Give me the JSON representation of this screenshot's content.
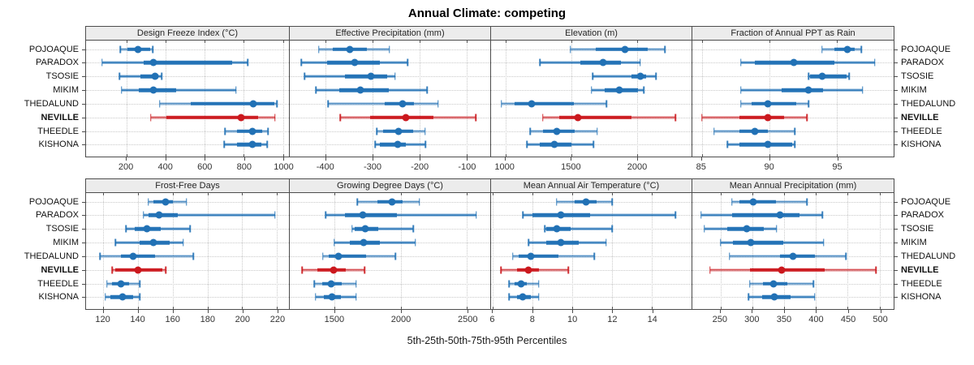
{
  "title": "Annual Climate: competing",
  "caption": "5th-25th-50th-75th-95th Percentiles",
  "sites": [
    "POJOAQUE",
    "PARADOX",
    "TSOSIE",
    "MIKIM",
    "THEDALUND",
    "NEVILLE",
    "THEEDLE",
    "KISHONA"
  ],
  "highlight_site": "NEVILLE",
  "colors": {
    "series": "#2171b5",
    "highlight": "#cb181d",
    "grid": "#c9c9c9",
    "header_bg": "#ececec",
    "border": "#4d4d4d"
  },
  "chart_data": {
    "type": "percentile-dotplot",
    "layout": "2 rows x 4 columns of panels, shared site rows",
    "percentile_labels": [
      "5th",
      "25th",
      "50th",
      "75th",
      "95th"
    ],
    "rows": [
      "POJOAQUE",
      "PARADOX",
      "TSOSIE",
      "MIKIM",
      "THEDALUND",
      "NEVILLE",
      "THEEDLE",
      "KISHONA"
    ],
    "panels": [
      {
        "title": "Design Freeze Index (°C)",
        "xlim": [
          -6,
          1031
        ],
        "ticks": [
          200,
          400,
          600,
          800,
          1000
        ],
        "values": [
          [
            170,
            205,
            260,
            320,
            335
          ],
          [
            75,
            290,
            340,
            740,
            820
          ],
          [
            165,
            270,
            345,
            365,
            380
          ],
          [
            175,
            265,
            340,
            455,
            760
          ],
          [
            370,
            530,
            850,
            955,
            970
          ],
          [
            325,
            405,
            785,
            875,
            960
          ],
          [
            705,
            765,
            845,
            895,
            925
          ],
          [
            700,
            765,
            843,
            890,
            920
          ]
        ]
      },
      {
        "title": "Effective Precipitation (mm)",
        "xlim": [
          -477,
          -49
        ],
        "ticks": [
          -400,
          -300,
          -200,
          -100
        ],
        "values": [
          [
            -415,
            -385,
            -348,
            -312,
            -264
          ],
          [
            -452,
            -398,
            -339,
            -285,
            -225
          ],
          [
            -445,
            -360,
            -303,
            -269,
            -252
          ],
          [
            -421,
            -372,
            -327,
            -266,
            -184
          ],
          [
            -395,
            -275,
            -236,
            -212,
            -160
          ],
          [
            -369,
            -306,
            -230,
            -171,
            -80
          ],
          [
            -291,
            -278,
            -245,
            -214,
            -188
          ],
          [
            -295,
            -285,
            -247,
            -229,
            -187
          ]
        ]
      },
      {
        "title": "Elevation (m)",
        "xlim": [
          892,
          2416
        ],
        "ticks": [
          1000,
          1500,
          2000
        ],
        "values": [
          [
            1495,
            1685,
            1910,
            2080,
            2215
          ],
          [
            1265,
            1570,
            1745,
            1880,
            2025
          ],
          [
            1665,
            1960,
            2025,
            2070,
            2145
          ],
          [
            1655,
            1755,
            1865,
            2010,
            2055
          ],
          [
            970,
            1070,
            1200,
            1520,
            1770
          ],
          [
            1285,
            1410,
            1555,
            1960,
            2295
          ],
          [
            1190,
            1285,
            1390,
            1530,
            1700
          ],
          [
            1165,
            1265,
            1375,
            1500,
            1670
          ]
        ]
      },
      {
        "title": "Fraction of Annual PPT as Rain",
        "xlim": [
          84.3,
          99.2
        ],
        "ticks": [
          85,
          90,
          95
        ],
        "values": [
          [
            93.9,
            94.8,
            95.8,
            96.3,
            96.8
          ],
          [
            87.9,
            88.9,
            91.8,
            94.8,
            97.8
          ],
          [
            92.9,
            93,
            93.9,
            95.7,
            95.9
          ],
          [
            87.9,
            90.9,
            92.9,
            94,
            96.9
          ],
          [
            87.9,
            88.7,
            89.9,
            92,
            92.9
          ],
          [
            85,
            87.8,
            89.9,
            91.1,
            92.8
          ],
          [
            85.9,
            87.8,
            88.9,
            89.9,
            91.9
          ],
          [
            86.9,
            87.8,
            89.9,
            91.7,
            91.9
          ]
        ]
      },
      {
        "title": "Frost-Free Days",
        "xlim": [
          110,
          227
        ],
        "ticks": [
          120,
          140,
          160,
          180,
          200,
          220
        ],
        "values": [
          [
            146,
            149,
            156,
            160,
            168
          ],
          [
            143,
            146,
            152,
            163,
            219
          ],
          [
            133,
            138,
            145,
            153,
            170
          ],
          [
            127,
            141,
            149,
            158,
            166
          ],
          [
            118,
            130,
            137,
            150,
            172
          ],
          [
            125,
            127,
            140,
            154,
            156
          ],
          [
            122,
            125,
            130,
            135,
            141
          ],
          [
            121,
            124,
            131,
            137,
            141
          ]
        ]
      },
      {
        "title": "Growing Degree Days (°C)",
        "xlim": [
          1160,
          2675
        ],
        "ticks": [
          1500,
          2000,
          2500
        ],
        "values": [
          [
            1670,
            1820,
            1930,
            2015,
            2140
          ],
          [
            1430,
            1575,
            1715,
            1970,
            2570
          ],
          [
            1630,
            1650,
            1730,
            1830,
            2095
          ],
          [
            1495,
            1615,
            1720,
            1840,
            2110
          ],
          [
            1410,
            1455,
            1530,
            1735,
            1960
          ],
          [
            1255,
            1370,
            1490,
            1585,
            1725
          ],
          [
            1345,
            1405,
            1470,
            1555,
            1660
          ],
          [
            1355,
            1415,
            1480,
            1545,
            1660
          ]
        ]
      },
      {
        "title": "Mean Annual Air Temperature (°C)",
        "xlim": [
          5.9,
          16
        ],
        "ticks": [
          6,
          8,
          10,
          12,
          14
        ],
        "values": [
          [
            9.2,
            10.1,
            10.7,
            11.2,
            12
          ],
          [
            7.5,
            8,
            9.4,
            10.9,
            15.2
          ],
          [
            8.6,
            8.7,
            9.2,
            9.9,
            12
          ],
          [
            7.8,
            8.7,
            9.4,
            10.3,
            11.7
          ],
          [
            7,
            7.3,
            7.9,
            9.3,
            11.1
          ],
          [
            6.4,
            7.2,
            7.8,
            8.3,
            9.8
          ],
          [
            6.8,
            7.1,
            7.4,
            7.7,
            8.3
          ],
          [
            6.8,
            7.2,
            7.5,
            7.9,
            8.3
          ]
        ]
      },
      {
        "title": "Mean Annual Precipitation (mm)",
        "xlim": [
          206,
          522
        ],
        "ticks": [
          250,
          300,
          350,
          400,
          450,
          500
        ],
        "values": [
          [
            268,
            280,
            302,
            337,
            386
          ],
          [
            220,
            269,
            343,
            374,
            410
          ],
          [
            225,
            261,
            292,
            318,
            338
          ],
          [
            250,
            270,
            298,
            349,
            412
          ],
          [
            264,
            343,
            364,
            398,
            447
          ],
          [
            234,
            296,
            346,
            414,
            494
          ],
          [
            296,
            317,
            334,
            355,
            396
          ],
          [
            294,
            315,
            335,
            360,
            398
          ]
        ]
      }
    ]
  }
}
